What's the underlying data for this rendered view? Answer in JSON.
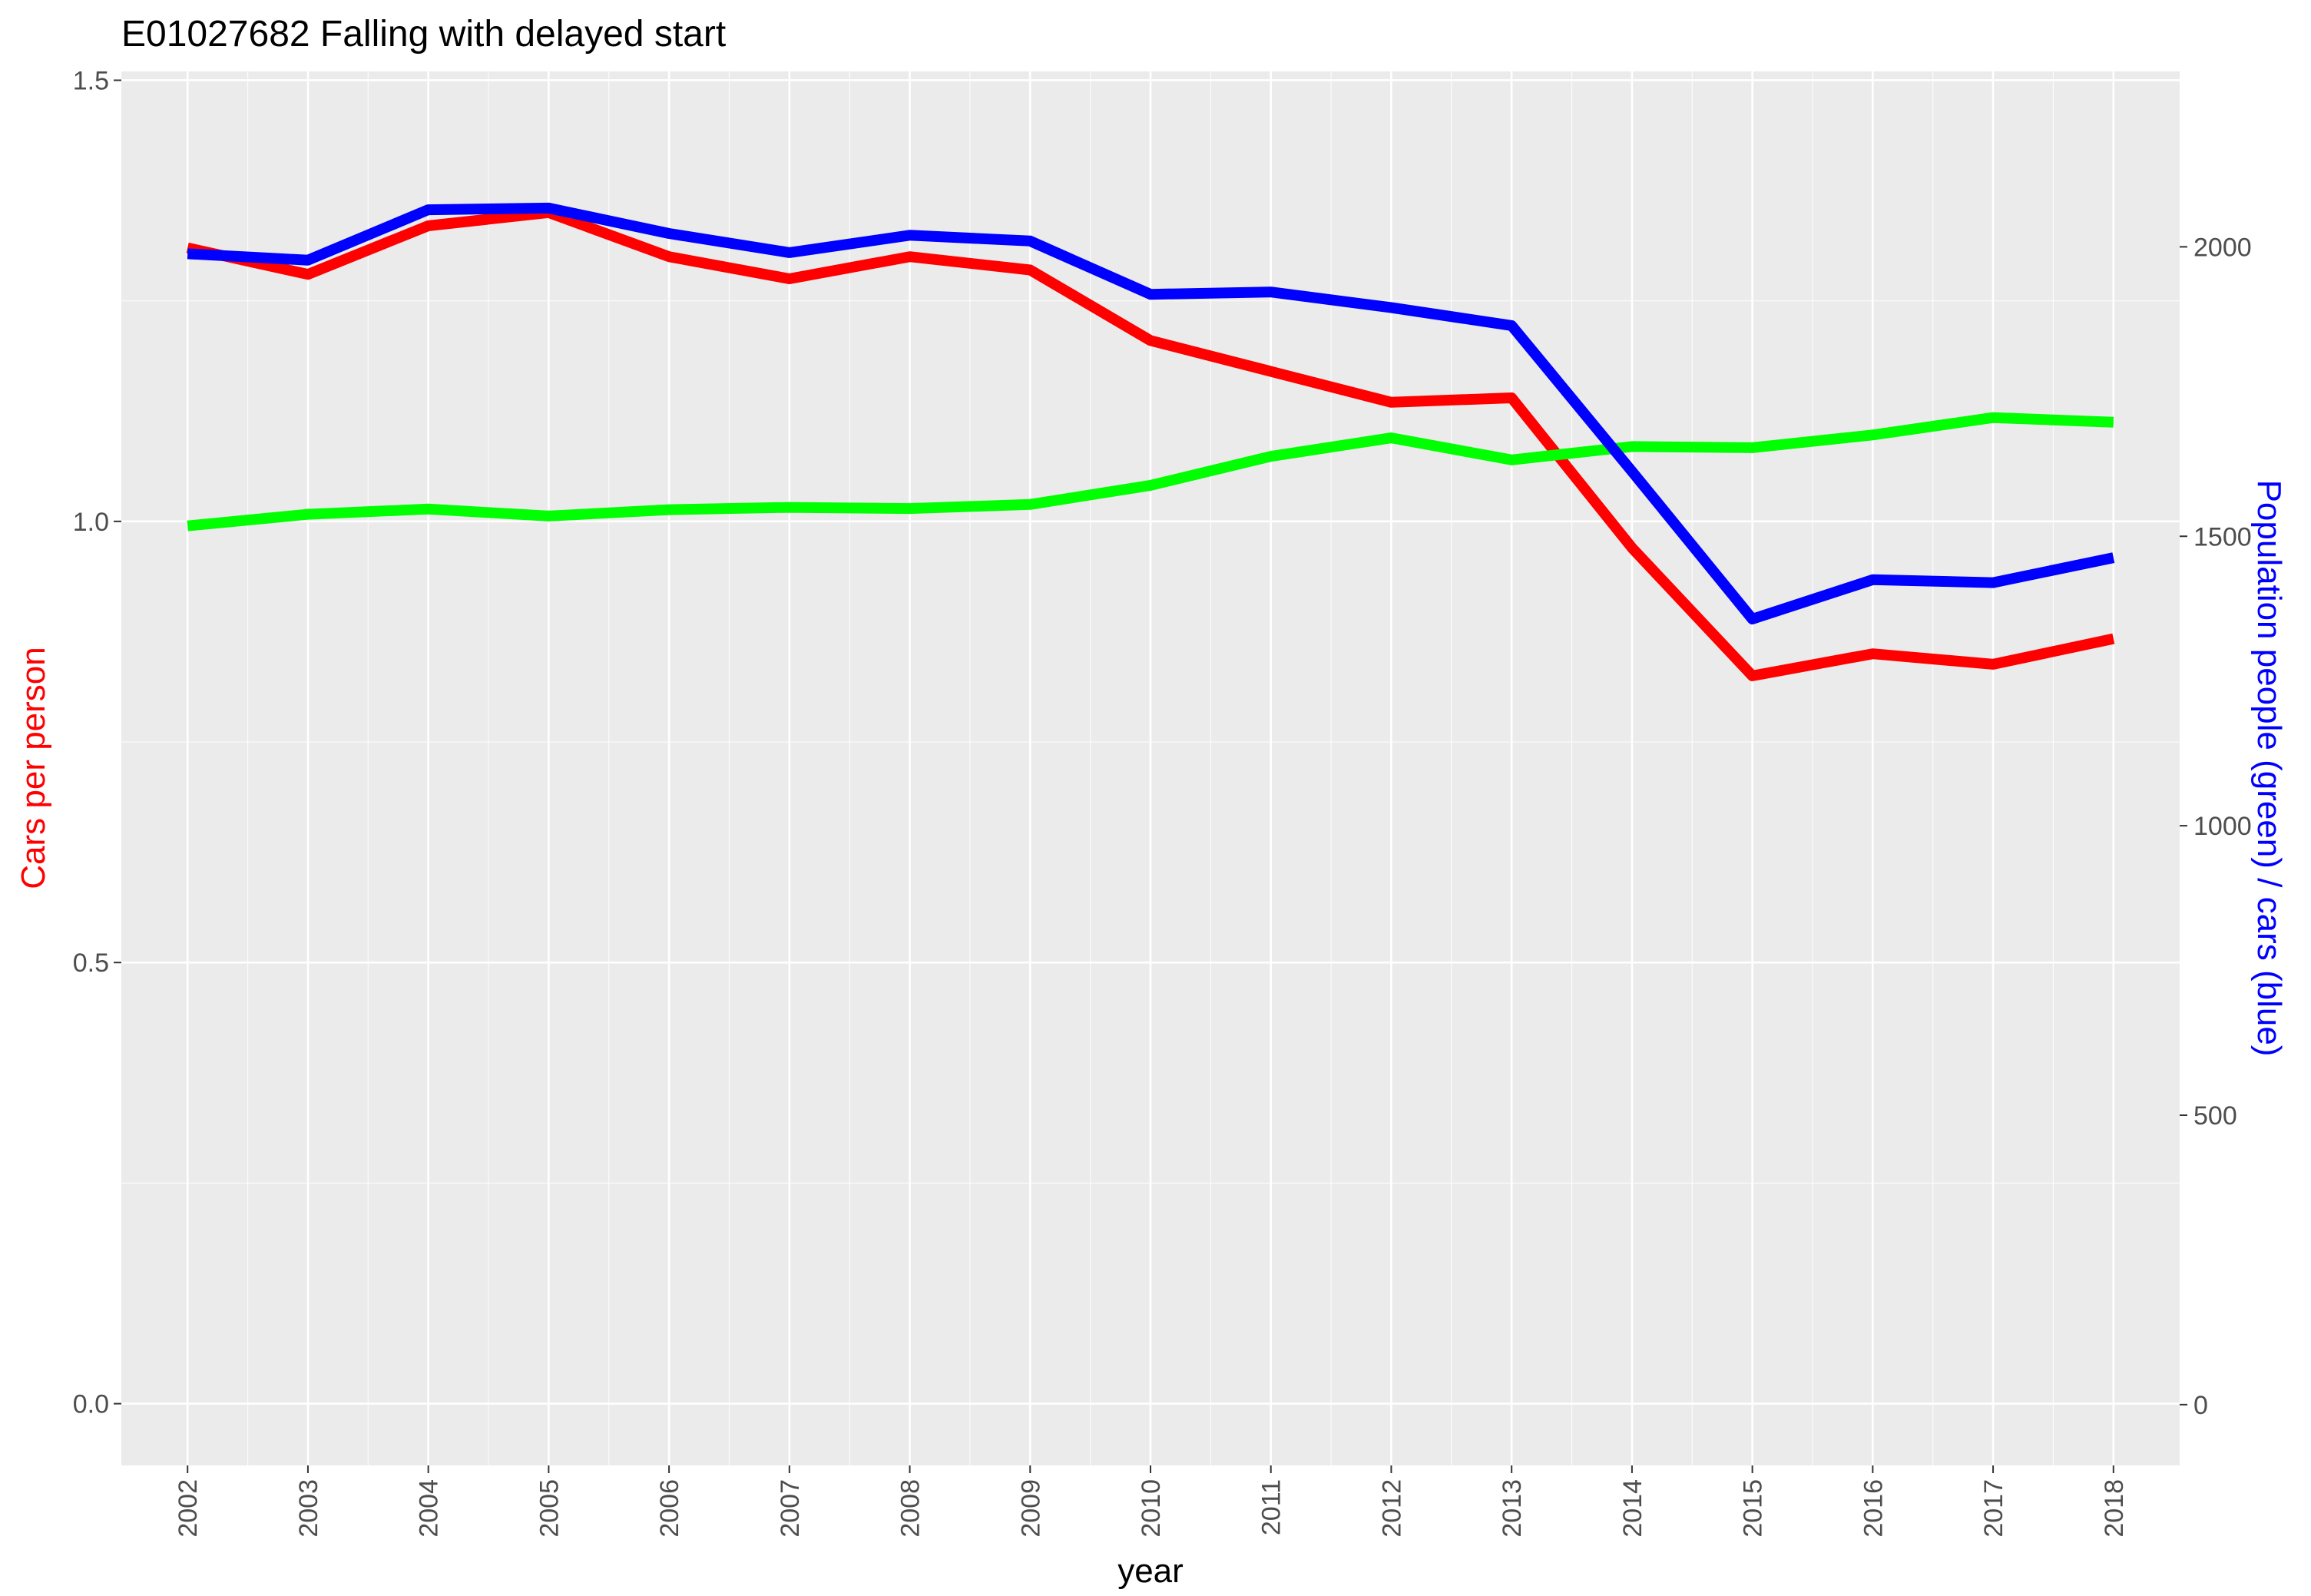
{
  "chart_data": {
    "type": "line",
    "title": "E01027682 Falling with delayed start",
    "xlabel": "year",
    "ylabel_left": "Cars per person",
    "ylabel_right": "Population people (green) / cars (blue)",
    "x": [
      2002,
      2003,
      2004,
      2005,
      2006,
      2007,
      2008,
      2009,
      2010,
      2011,
      2012,
      2013,
      2014,
      2015,
      2016,
      2017,
      2018
    ],
    "x_tick_labels": [
      "2002",
      "2003",
      "2004",
      "2005",
      "2006",
      "2007",
      "2008",
      "2009",
      "2010",
      "2011",
      "2012",
      "2013",
      "2014",
      "2015",
      "2016",
      "2017",
      "2018"
    ],
    "xlim": [
      2001.45,
      2018.55
    ],
    "left_axis": {
      "ylim": [
        -0.07,
        1.51
      ],
      "ticks": [
        0.0,
        0.5,
        1.0,
        1.5
      ],
      "tick_labels": [
        "0.0",
        "0.5",
        "1.0",
        "1.5"
      ],
      "minor_ticks": [
        0.25,
        0.75,
        1.25
      ]
    },
    "right_axis": {
      "ylim": [
        -105,
        2303
      ],
      "ticks": [
        0,
        500,
        1000,
        1500,
        2000
      ],
      "tick_labels": [
        "0",
        "500",
        "1000",
        "1500",
        "2000"
      ]
    },
    "series": [
      {
        "axis": "left",
        "color": "#ff0000",
        "values": [
          1.31,
          1.28,
          1.335,
          1.35,
          1.3,
          1.275,
          1.3,
          1.285,
          1.205,
          1.17,
          1.135,
          1.14,
          0.97,
          0.825,
          0.85,
          0.838,
          0.867
        ]
      },
      {
        "axis": "right",
        "color": "#00ff00",
        "values": [
          1518,
          1538,
          1547,
          1535,
          1546,
          1550,
          1548,
          1555,
          1588,
          1638,
          1670,
          1632,
          1655,
          1653,
          1675,
          1705,
          1697
        ]
      },
      {
        "axis": "right",
        "color": "#0000ff",
        "values": [
          1988,
          1977,
          2064,
          2067,
          2023,
          1990,
          2020,
          2010,
          1918,
          1922,
          1895,
          1864,
          1612,
          1357,
          1425,
          1420,
          1463
        ]
      }
    ],
    "colors": {
      "panel_background": "#ebebeb",
      "grid_major": "#ffffff",
      "tick_text": "#4d4d4d",
      "left_axis_title": "#ff0000",
      "right_axis_title": "#0000ff",
      "x_axis_title": "#000000"
    }
  }
}
